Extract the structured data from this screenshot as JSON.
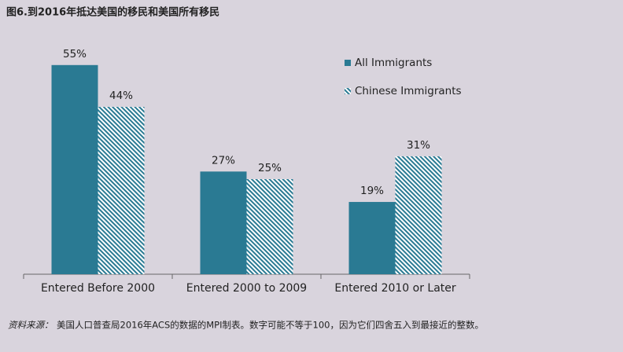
{
  "chart_data": {
    "type": "bar",
    "title": "图6.到2016年抵达美国的移民和美国所有移民",
    "categories": [
      "Entered Before 2000",
      "Entered 2000 to 2009",
      "Entered 2010 or Later"
    ],
    "series": [
      {
        "name": "All Immigrants",
        "color": "#2a7a93",
        "fill": "solid",
        "values": [
          55,
          27,
          19
        ],
        "value_labels": [
          "55%",
          "27%",
          "19%"
        ]
      },
      {
        "name": "Chinese Immigrants",
        "color": "#2a7a93",
        "fill": "hatch",
        "values": [
          44,
          25,
          31
        ],
        "value_labels": [
          "44%",
          "25%",
          "31%"
        ]
      }
    ],
    "legend": "top-right",
    "source_label": "资料来源：",
    "source": "美国人口普查局2016年ACS的数据的MPI制表。数字可能不等于100，因为它们四舍五入到最接近的整数。"
  }
}
